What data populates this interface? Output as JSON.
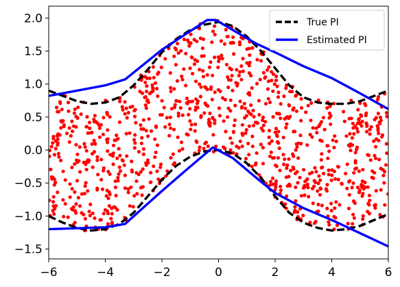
{
  "chart_data": {
    "type": "scatter",
    "title": "",
    "xlabel": "",
    "ylabel": "",
    "xlim": [
      -6,
      6
    ],
    "ylim": [
      -1.65,
      2.18
    ],
    "grid": false,
    "legend_position": "top-right",
    "x_ticks": [
      -6,
      -4,
      -2,
      0,
      2,
      4,
      6
    ],
    "x_tick_labels": [
      "−6",
      "−4",
      "−2",
      "0",
      "2",
      "4",
      "6"
    ],
    "y_ticks": [
      -1.5,
      -1.0,
      -0.5,
      0.0,
      0.5,
      1.0,
      1.5,
      2.0
    ],
    "y_tick_labels": [
      "−1.5",
      "−1.0",
      "−0.5",
      "0.0",
      "0.5",
      "1.0",
      "1.5",
      "2.0"
    ],
    "series": [
      {
        "name": "True PI",
        "kind": "upper-lower-lines",
        "color": "#000000",
        "dash": "dashed",
        "upper": {
          "x": [
            -6,
            -5.5,
            -5,
            -4.5,
            -4,
            -3.5,
            -3,
            -2.5,
            -2,
            -1.5,
            -1,
            -0.5,
            0,
            0.5,
            1,
            1.5,
            2,
            2.5,
            3,
            3.5,
            4,
            4.5,
            5,
            5.5,
            6
          ],
          "y": [
            0.9,
            0.82,
            0.74,
            0.7,
            0.72,
            0.8,
            0.98,
            1.22,
            1.48,
            1.68,
            1.82,
            1.9,
            1.94,
            1.88,
            1.72,
            1.5,
            1.24,
            0.98,
            0.8,
            0.72,
            0.7,
            0.7,
            0.74,
            0.82,
            0.9
          ]
        },
        "lower": {
          "x": [
            -6,
            -5.5,
            -5,
            -4.5,
            -4,
            -3.5,
            -3,
            -2.5,
            -2,
            -1.5,
            -1,
            -0.5,
            0,
            0.5,
            1,
            1.5,
            2,
            2.5,
            3,
            3.5,
            4,
            4.5,
            5,
            5.5,
            6
          ],
          "y": [
            -1.0,
            -1.1,
            -1.18,
            -1.22,
            -1.2,
            -1.12,
            -0.95,
            -0.7,
            -0.45,
            -0.24,
            -0.1,
            -0.02,
            0.0,
            -0.05,
            -0.2,
            -0.42,
            -0.7,
            -0.95,
            -1.1,
            -1.18,
            -1.22,
            -1.2,
            -1.15,
            -1.06,
            -0.97
          ]
        }
      },
      {
        "name": "Estimated PI",
        "kind": "upper-lower-lines",
        "color": "#0000ff",
        "dash": "solid",
        "upper": {
          "x": [
            -6,
            -5,
            -4,
            -3.3,
            -2,
            -0.4,
            -0.1,
            1.3,
            2,
            3,
            4,
            5,
            6
          ],
          "y": [
            0.82,
            0.9,
            0.98,
            1.07,
            1.52,
            1.97,
            1.97,
            1.62,
            1.48,
            1.27,
            1.09,
            0.86,
            0.62
          ]
        },
        "lower": {
          "x": [
            -6,
            -4,
            -3.3,
            -2,
            -1,
            -0.2,
            0.5,
            1.5,
            2,
            3,
            4,
            5,
            6
          ],
          "y": [
            -1.2,
            -1.17,
            -1.12,
            -0.62,
            -0.25,
            0.04,
            -0.12,
            -0.48,
            -0.65,
            -0.88,
            -1.06,
            -1.26,
            -1.46
          ]
        }
      },
      {
        "name": "",
        "kind": "points",
        "color": "#ff0000",
        "count": 1000,
        "x_range": [
          -6,
          6
        ],
        "note": "points scattered uniformly between the true PI bounds"
      }
    ]
  }
}
